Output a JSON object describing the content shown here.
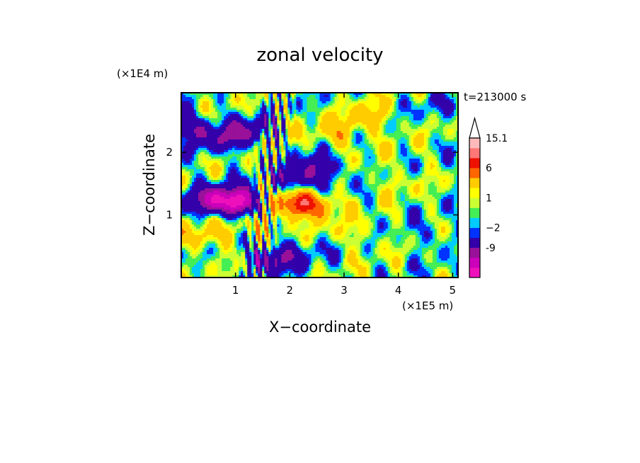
{
  "chart_data": {
    "type": "heatmap",
    "title": "zonal velocity",
    "xlabel": "X−coordinate",
    "ylabel": "Z−coordinate",
    "x_scale_note": "(×1E5 m)",
    "y_scale_note": "(×1E4 m)",
    "time_label": "t=213000 s",
    "xlim": [
      0,
      5.1
    ],
    "ylim": [
      0,
      2.95
    ],
    "x_ticks": [
      1,
      2,
      3,
      4,
      5
    ],
    "y_ticks": [
      1,
      2
    ],
    "x_tick_labels": [
      "1",
      "2",
      "3",
      "4",
      "5"
    ],
    "y_tick_labels": [
      "1",
      "2"
    ],
    "colorbar": {
      "levels": [
        -15,
        -12,
        -9,
        -6,
        -2,
        -1,
        0,
        1,
        2,
        3,
        6,
        9,
        12,
        15.1
      ],
      "colors": [
        "#ee11bb",
        "#cc00bb",
        "#991199",
        "#3300aa",
        "#0033ff",
        "#00ccff",
        "#44ee55",
        "#ccff33",
        "#ffff00",
        "#ffcc00",
        "#ff6600",
        "#ee1100",
        "#ff7777",
        "#ffbbbb"
      ],
      "labels": [
        "-9",
        "−2",
        "1",
        "6",
        "15.1"
      ],
      "label_values": [
        -9,
        -2,
        1,
        6,
        15.1
      ],
      "over_arrow_color": "#ffffff",
      "grid": false
    },
    "features": [
      {
        "x": 1.05,
        "z": 1.2,
        "v": -13
      },
      {
        "x": 0.55,
        "z": 1.25,
        "v": -8
      },
      {
        "x": 2.1,
        "z": 1.18,
        "v": 9
      },
      {
        "x": 2.5,
        "z": 1.15,
        "v": 5
      },
      {
        "x": 1.35,
        "z": 0.85,
        "v": 4
      },
      {
        "x": 0.45,
        "z": 0.65,
        "v": 4
      },
      {
        "x": 0.15,
        "z": 2.4,
        "v": -6
      },
      {
        "x": 0.75,
        "z": 2.2,
        "v": -5
      },
      {
        "x": 1.25,
        "z": 2.35,
        "v": -6
      },
      {
        "x": 2.15,
        "z": 1.55,
        "v": -6
      },
      {
        "x": 2.55,
        "z": 1.75,
        "v": -5
      },
      {
        "x": 3.45,
        "z": 2.55,
        "v": 4
      },
      {
        "x": 2.85,
        "z": 2.3,
        "v": 4
      },
      {
        "x": 3.9,
        "z": 1.55,
        "v": 1.5
      },
      {
        "x": 4.6,
        "z": 0.65,
        "v": -2
      },
      {
        "x": 2.25,
        "z": 0.4,
        "v": -2
      },
      {
        "x": 1.65,
        "z": 0.3,
        "v": -8
      },
      {
        "x": 4.7,
        "z": 2.7,
        "v": -1.5
      },
      {
        "x": 4.2,
        "z": 2.0,
        "v": 0.5
      },
      {
        "x": 3.2,
        "z": 0.7,
        "v": 2
      }
    ]
  }
}
